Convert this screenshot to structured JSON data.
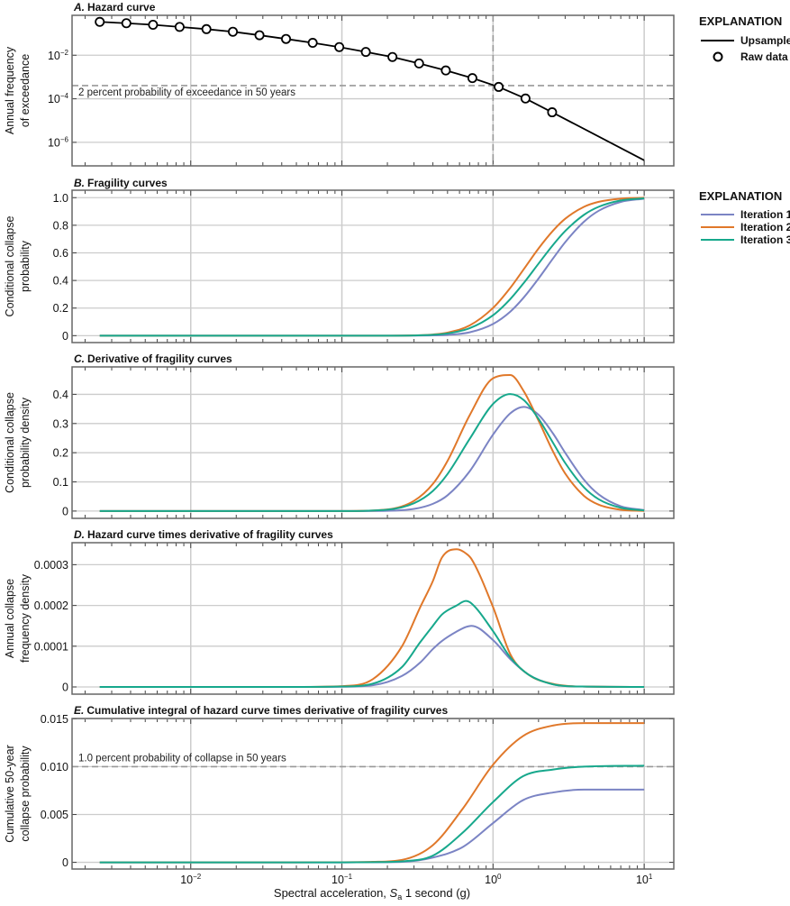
{
  "colors": {
    "iteration_1": "#7b84c4",
    "iteration_2": "#e0782a",
    "iteration_3": "#17a88c",
    "upsampled": "#000000",
    "reference_line": "#999999",
    "grid": "#cccccc",
    "frame": "#666666"
  },
  "x_axis": {
    "title_prefix": "Spectral acceleration, ",
    "title_symbol": "S",
    "title_subscript": "a",
    "title_suffix": " 1 second (g)",
    "scale": "log",
    "xlim": [
      0.00164,
      15.7
    ],
    "ticks": [
      {
        "value": 0.01,
        "base": "10",
        "exp": "−2"
      },
      {
        "value": 0.1,
        "base": "10",
        "exp": "−1"
      },
      {
        "value": 1,
        "base": "10",
        "exp": "0"
      },
      {
        "value": 10,
        "base": "10",
        "exp": "1"
      }
    ]
  },
  "legends": {
    "hazard": {
      "heading": "EXPLANATION",
      "items": [
        {
          "label": "Upsampled",
          "symbol": "line"
        },
        {
          "label": "Raw data",
          "symbol": "open-circle"
        }
      ]
    },
    "iterations": {
      "heading": "EXPLANATION",
      "items": [
        {
          "label": "Iteration 1",
          "color_key": "iteration_1"
        },
        {
          "label": "Iteration 2",
          "color_key": "iteration_2"
        },
        {
          "label": "Iteration 3",
          "color_key": "iteration_3"
        }
      ]
    }
  },
  "chart_data": [
    {
      "type": "line",
      "label": "A.",
      "title": "Hazard curve",
      "ylabel": [
        "Annual frequency",
        "of exceedance"
      ],
      "yscale": "log",
      "ylim": [
        8.3e-08,
        0.68
      ],
      "grid": true,
      "yticks": [
        {
          "value": 0.01,
          "base": "10",
          "exp": "−2"
        },
        {
          "value": 0.0001,
          "base": "10",
          "exp": "−4"
        },
        {
          "value": 1e-06,
          "base": "10",
          "exp": "−6"
        }
      ],
      "reference_lines": [
        {
          "orientation": "horizontal",
          "value": 0.000404,
          "label": "2 percent probability of exceedance in 50 years"
        },
        {
          "orientation": "vertical",
          "value": 1.0,
          "label": ""
        }
      ],
      "series": [
        {
          "name": "Upsampled",
          "style": "line",
          "x": [
            0.0025,
            0.00375,
            0.00563,
            0.00844,
            0.0127,
            0.019,
            0.0285,
            0.0427,
            0.0641,
            0.0961,
            0.144,
            0.216,
            0.324,
            0.487,
            0.73,
            1.09,
            1.64,
            2.46,
            10
          ],
          "y": [
            0.34,
            0.295,
            0.25,
            0.2,
            0.158,
            0.12,
            0.083,
            0.056,
            0.037,
            0.0237,
            0.0142,
            0.0083,
            0.0042,
            0.002,
            0.00089,
            0.00035,
            0.000103,
            2.4e-05,
            1.5e-07
          ]
        },
        {
          "name": "Raw data",
          "style": "open-circle",
          "x": [
            0.0025,
            0.00375,
            0.00563,
            0.00844,
            0.0127,
            0.019,
            0.0285,
            0.0427,
            0.0641,
            0.0961,
            0.144,
            0.216,
            0.324,
            0.487,
            0.73,
            1.09,
            1.64,
            2.46
          ],
          "y": [
            0.34,
            0.295,
            0.25,
            0.2,
            0.158,
            0.12,
            0.083,
            0.056,
            0.037,
            0.0237,
            0.0142,
            0.0083,
            0.0042,
            0.002,
            0.00089,
            0.00035,
            0.000103,
            2.4e-05
          ]
        }
      ]
    },
    {
      "type": "line",
      "label": "B.",
      "title": "Fragility curves",
      "ylabel": [
        "Conditional collapse",
        "probability"
      ],
      "yscale": "linear",
      "ylim": [
        -0.05,
        1.054
      ],
      "grid": true,
      "yticks": [
        {
          "value": 0,
          "text": "0"
        },
        {
          "value": 0.2,
          "text": "0.2"
        },
        {
          "value": 0.4,
          "text": "0.4"
        },
        {
          "value": 0.6,
          "text": "0.6"
        },
        {
          "value": 0.8,
          "text": "0.8"
        },
        {
          "value": 1.0,
          "text": "1.0"
        }
      ],
      "x": [
        0.0025,
        0.05,
        0.1,
        0.2,
        0.3,
        0.4,
        0.5,
        0.7,
        1,
        1.3,
        1.6,
        2,
        2.5,
        3,
        4,
        5,
        7,
        10
      ],
      "series": [
        {
          "name": "Iteration 1",
          "values": [
            0,
            0,
            0,
            3e-05,
            0.0004,
            0.0019,
            0.0057,
            0.0244,
            0.085,
            0.174,
            0.278,
            0.414,
            0.561,
            0.677,
            0.826,
            0.905,
            0.969,
            0.993
          ]
        },
        {
          "name": "Iteration 2",
          "values": [
            0,
            0,
            0,
            0.0002,
            0.002,
            0.0084,
            0.022,
            0.074,
            0.201,
            0.346,
            0.483,
            0.632,
            0.762,
            0.847,
            0.934,
            0.97,
            0.993,
            0.999
          ]
        },
        {
          "name": "Iteration 3",
          "values": [
            0,
            0,
            0,
            0.0002,
            0.0016,
            0.0062,
            0.016,
            0.054,
            0.148,
            0.265,
            0.383,
            0.522,
            0.659,
            0.758,
            0.876,
            0.934,
            0.98,
            0.995
          ]
        }
      ]
    },
    {
      "type": "line",
      "label": "C.",
      "title": "Derivative of fragility curves",
      "ylabel": [
        "Conditional collapse",
        "probability density"
      ],
      "yscale": "linear",
      "ylim": [
        -0.025,
        0.494
      ],
      "grid": true,
      "yticks": [
        {
          "value": 0,
          "text": "0"
        },
        {
          "value": 0.1,
          "text": "0.1"
        },
        {
          "value": 0.2,
          "text": "0.2"
        },
        {
          "value": 0.3,
          "text": "0.3"
        },
        {
          "value": 0.4,
          "text": "0.4"
        }
      ],
      "x": [
        0.0025,
        0.05,
        0.1,
        0.2,
        0.3,
        0.4,
        0.5,
        0.7,
        1,
        1.3,
        1.6,
        2,
        2.5,
        3,
        4,
        5,
        7,
        10
      ],
      "series": [
        {
          "name": "Iteration 1",
          "values": [
            0,
            0,
            0,
            0.0009,
            0.0073,
            0.0248,
            0.054,
            0.136,
            0.262,
            0.335,
            0.357,
            0.33,
            0.265,
            0.2,
            0.107,
            0.057,
            0.0165,
            0.0032
          ]
        },
        {
          "name": "Iteration 2",
          "values": [
            0,
            0,
            0,
            0.0056,
            0.035,
            0.093,
            0.172,
            0.328,
            0.455,
            0.466,
            0.41,
            0.31,
            0.203,
            0.129,
            0.052,
            0.022,
            0.0045,
            0.0006
          ]
        },
        {
          "name": "Iteration 3",
          "values": [
            0,
            0,
            0,
            0.0048,
            0.027,
            0.069,
            0.127,
            0.247,
            0.367,
            0.401,
            0.38,
            0.316,
            0.233,
            0.165,
            0.081,
            0.0405,
            0.0112,
            0.0021
          ]
        }
      ]
    },
    {
      "type": "line",
      "label": "D.",
      "title": "Hazard curve times derivative of fragility curves",
      "ylabel": [
        "Annual collapse",
        "frequency density"
      ],
      "yscale": "linear",
      "ylim": [
        -1.77e-05,
        0.000354
      ],
      "grid": true,
      "yticks": [
        {
          "value": 0,
          "text": "0"
        },
        {
          "value": 0.0001,
          "text": "0.0001"
        },
        {
          "value": 0.0002,
          "text": "0.0002"
        },
        {
          "value": 0.0003,
          "text": "0.0003"
        }
      ],
      "x": [
        0.0025,
        0.05,
        0.1,
        0.16,
        0.25,
        0.33,
        0.4,
        0.46,
        0.575,
        0.66,
        0.72,
        1.0,
        1.31,
        1.72,
        2.46,
        3.9,
        10
      ],
      "series": [
        {
          "name": "Iteration 1",
          "values": [
            0,
            0,
            5e-07,
            4e-06,
            2.7e-05,
            6e-05,
            9.3e-05,
            0.000113,
            0.000136,
            0.000147,
            0.00015,
            0.000115,
            6.7e-05,
            3e-05,
            7e-06,
            1e-06,
            0
          ]
        },
        {
          "name": "Iteration 2",
          "values": [
            0,
            0,
            2e-06,
            1.9e-05,
            0.0001,
            0.000196,
            0.00026,
            0.000318,
            0.000338,
            0.000328,
            0.000314,
            0.000196,
            7.8e-05,
            3e-05,
            8e-06,
            1e-06,
            0
          ]
        },
        {
          "name": "Iteration 3",
          "values": [
            0,
            0,
            1e-06,
            8e-06,
            4.9e-05,
            0.00011,
            0.00015,
            0.000178,
            0.0002,
            0.000211,
            0.000205,
            0.000137,
            7.1e-05,
            3e-05,
            7e-06,
            1e-06,
            0
          ]
        }
      ]
    },
    {
      "type": "line",
      "label": "E.",
      "title": "Cumulative integral of hazard curve times derivative of fragility curves",
      "ylabel": [
        "Cumulative 50-year",
        "collapse probability"
      ],
      "yscale": "linear",
      "ylim": [
        -0.0007,
        0.01503
      ],
      "grid": true,
      "yticks": [
        {
          "value": 0,
          "text": "0"
        },
        {
          "value": 0.005,
          "text": "0.005"
        },
        {
          "value": 0.01,
          "text": "0.010"
        },
        {
          "value": 0.015,
          "text": "0.015"
        }
      ],
      "reference_lines": [
        {
          "orientation": "horizontal",
          "value": 0.01,
          "label": "1.0 percent probability of collapse in 50 years"
        }
      ],
      "x": [
        0.0025,
        0.05,
        0.1,
        0.16,
        0.25,
        0.4,
        0.63,
        1.0,
        1.58,
        2.5,
        4,
        10
      ],
      "series": [
        {
          "name": "Iteration 1",
          "values": [
            0,
            0,
            0,
            1e-05,
            5e-05,
            0.0005,
            0.0016,
            0.0041,
            0.0065,
            0.0073,
            0.0076,
            0.0076
          ]
        },
        {
          "name": "Iteration 2",
          "values": [
            0,
            0,
            1e-05,
            5e-05,
            0.00026,
            0.0018,
            0.0056,
            0.0102,
            0.0132,
            0.0143,
            0.01455,
            0.01455
          ]
        },
        {
          "name": "Iteration 3",
          "values": [
            0,
            0,
            0,
            2e-05,
            0.0001,
            0.0007,
            0.0031,
            0.0063,
            0.009,
            0.0097,
            0.01,
            0.0101
          ]
        }
      ]
    }
  ]
}
